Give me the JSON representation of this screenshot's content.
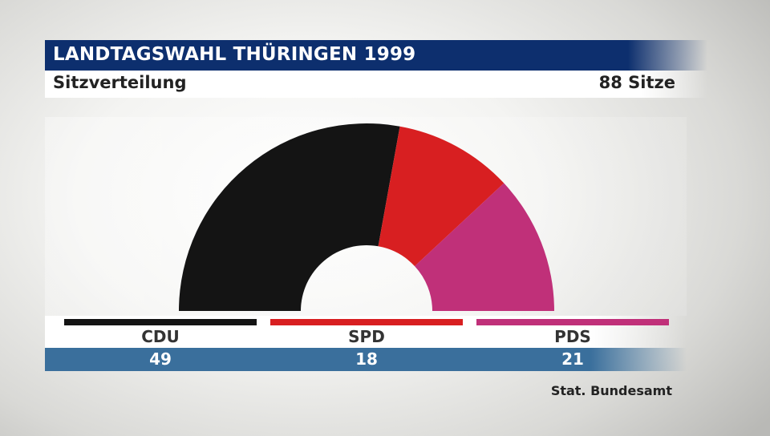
{
  "header": {
    "title": "LANDTAGSWAHL THÜRINGEN 1999",
    "subtitle": "Sitzverteilung",
    "total_seats_label": "88 Sitze"
  },
  "source": "Stat. Bundesamt",
  "chart_data": {
    "type": "pie",
    "subtype": "half-donut (parliament seats)",
    "title": "LANDTAGSWAHL THÜRINGEN 1999",
    "subtitle": "Sitzverteilung",
    "total": 88,
    "categories": [
      "CDU",
      "SPD",
      "PDS"
    ],
    "values": [
      49,
      18,
      21
    ],
    "colors": [
      "#141414",
      "#d81f21",
      "#c03079"
    ],
    "legend_placement": "bottom"
  }
}
